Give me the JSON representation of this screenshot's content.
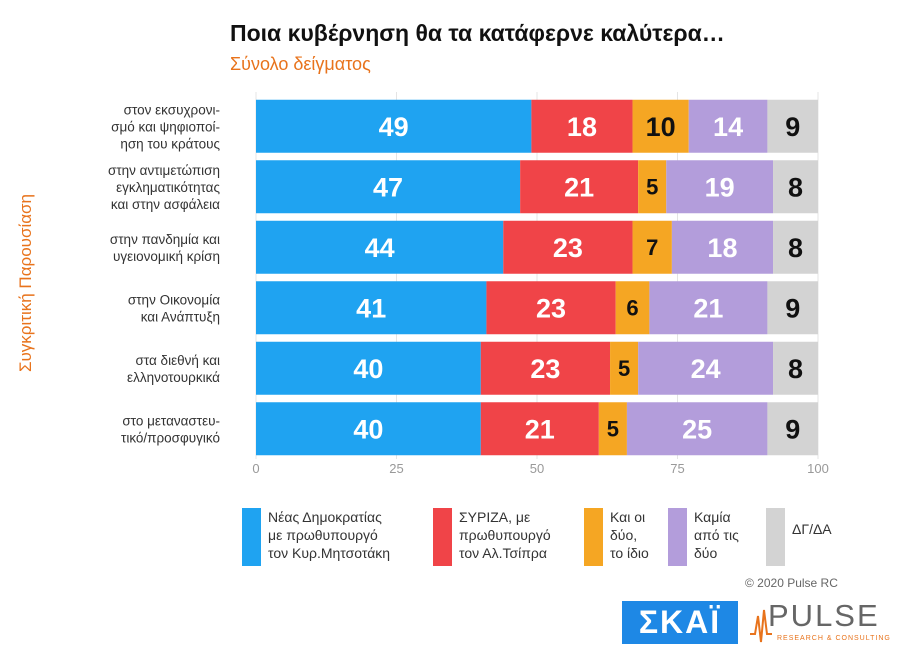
{
  "title": "Ποια κυβέρνηση θα τα κατάφερνε καλύτερα…",
  "subtitle": "Σύνολο δείγματος",
  "side_label": "Συγκριτική Παρουσίαση",
  "copyright": "© 2020 Pulse RC",
  "logos": {
    "skai": "ΣΚΑΪ",
    "pulse": "PULSE",
    "pulse_sub": "RESEARCH & CONSULTING"
  },
  "colors": {
    "nd": "#1fa3f1",
    "syriza": "#f04448",
    "both": "#f5a623",
    "none": "#b39ddb",
    "dk": "#d3d3d3"
  },
  "chart_data": {
    "type": "bar",
    "orientation": "horizontal",
    "stacked": true,
    "categories": [
      [
        "στον εκσυχρονι-",
        "σμό και ψηφιοποί-",
        "ηση του κράτους"
      ],
      [
        "στην αντιμετώπιση",
        "εγκληματικότητας",
        "και στην ασφάλεια"
      ],
      [
        "στην πανδημία και",
        "υγειονομική κρίση"
      ],
      [
        "στην Οικονομία",
        "και Ανάπτυξη"
      ],
      [
        "στα διεθνή και",
        "ελληνοτουρκικά"
      ],
      [
        "στο μεταναστευ-",
        "τικό/προσφυγικό"
      ]
    ],
    "series": [
      {
        "name": [
          "Νέας Δημοκρατίας",
          "με πρωθυπουργό",
          "τον Κυρ.Μητσοτάκη"
        ],
        "color": "#1fa3f1",
        "values": [
          49,
          47,
          44,
          41,
          40,
          40
        ]
      },
      {
        "name": [
          "ΣΥΡΙΖΑ, με",
          "πρωθυπουργό",
          "τον Αλ.Τσίπρα"
        ],
        "color": "#f04448",
        "values": [
          18,
          21,
          23,
          23,
          23,
          21
        ]
      },
      {
        "name": [
          "Και οι",
          "δύο,",
          "το ίδιο"
        ],
        "color": "#f5a623",
        "values": [
          10,
          5,
          7,
          6,
          5,
          5
        ]
      },
      {
        "name": [
          "Καμία",
          "από τις",
          "δύο"
        ],
        "color": "#b39ddb",
        "values": [
          14,
          19,
          18,
          21,
          24,
          25
        ]
      },
      {
        "name": [
          "ΔΓ/ΔΑ"
        ],
        "color": "#d3d3d3",
        "values": [
          9,
          8,
          8,
          9,
          8,
          9
        ]
      }
    ],
    "xlim": [
      0,
      100
    ],
    "xticks": [
      0,
      25,
      50,
      75,
      100
    ],
    "grid": true,
    "legend": "bottom"
  }
}
